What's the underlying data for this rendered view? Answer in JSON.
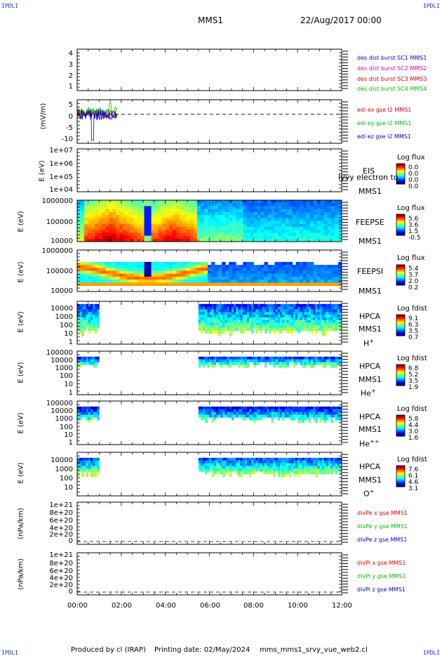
{
  "header": {
    "corner_tl": "IPDLI",
    "corner_tr": "IPDLI",
    "spacecraft": "MMS1",
    "date": "22/Aug/2017 00:00",
    "corner_bl": "IPDLI",
    "corner_br": "IPDLI"
  },
  "footer": {
    "produced_by": "Produced by cl (IRAP)",
    "printing_date": "Printing date: 02/May/2024",
    "filename": "mms_mms1_srvy_vue_web2.cl"
  },
  "x_axis": {
    "ticks": [
      "00:00",
      "02:00",
      "04:00",
      "06:00",
      "08:00",
      "10:00",
      "12:00"
    ],
    "range_hours": [
      0,
      12
    ]
  },
  "colors": {
    "mms1": "#0000cc",
    "mms2": "#cc00cc",
    "mms3": "#cc0000",
    "mms4": "#00bb00",
    "ex": "#dd0000",
    "ey": "#00bb00",
    "ez": "#0000cc"
  },
  "panels": {
    "p1": {
      "yticks": [
        "4",
        "3",
        "2",
        "1"
      ],
      "legend": [
        "des dist burst SC1 MMS1",
        "des dist burst SC2 MMS2",
        "des dist burst SC3 MMS3",
        "des dist burst SC4 MMS4"
      ]
    },
    "p2": {
      "ylabel": "(mV/m)",
      "yticks": [
        "5",
        "0",
        "-5",
        "-10"
      ],
      "legend": [
        "edi ex gse l2 MMS1",
        "edi ey gse l2 MMS1",
        "edi ez gse l2 MMS1"
      ]
    },
    "p3": {
      "ylabel": "E (eV)",
      "yticks": [
        "1e+07",
        "1e+06",
        "1e+05",
        "1e+04"
      ],
      "inst": "EIS",
      "inst_overlay": "lyvy electron to",
      "sc": "MMS1",
      "cb_title": "Log flux",
      "cb_values": [
        "0.0",
        "0.0",
        "0.0",
        "0.0"
      ]
    },
    "p4": {
      "ylabel": "E (eV)",
      "yticks": [
        "1000000",
        "100000",
        "10000"
      ],
      "inst": "FEEPSE",
      "sc": "MMS1",
      "cb_title": "Log flux",
      "cb_values": [
        "5.6",
        "3.6",
        "1.5",
        "-0.5"
      ]
    },
    "p5": {
      "ylabel": "E (eV)",
      "yticks": [
        "1000000",
        "100000",
        "10000"
      ],
      "inst": "FEEPSI",
      "sc": "MMS1",
      "cb_title": "Log flux",
      "cb_values": [
        "5.4",
        "3.7",
        "2.0",
        "0.2"
      ]
    },
    "p6": {
      "ylabel": "E (eV)",
      "yticks": [
        "10000",
        "1000",
        "100",
        "10",
        "1"
      ],
      "inst": "HPCA",
      "sc": "MMS1",
      "species": "H",
      "species_sup": "+",
      "cb_title": "Log fdist",
      "cb_values": [
        "9.1",
        "6.3",
        "3.5",
        "0.7"
      ]
    },
    "p7": {
      "ylabel": "E (eV)",
      "yticks": [
        "100000",
        "10000",
        "1000",
        "100",
        "10",
        "1"
      ],
      "inst": "HPCA",
      "sc": "MMS1",
      "species": "He",
      "species_sup": "+",
      "cb_title": "Log fdist",
      "cb_values": [
        "6.8",
        "5.2",
        "3.5",
        "1.9"
      ]
    },
    "p8": {
      "ylabel": "E (eV)",
      "yticks": [
        "100000",
        "10000",
        "1000",
        "100",
        "10",
        "1"
      ],
      "inst": "HPCA",
      "sc": "MMS1",
      "species": "He",
      "species_sup": "++",
      "cb_title": "Log fdist",
      "cb_values": [
        "5.8",
        "4.4",
        "3.0",
        "1.6"
      ]
    },
    "p9": {
      "ylabel": "E (eV)",
      "yticks": [
        "10000",
        "1000",
        "100",
        "10"
      ],
      "inst": "HPCA",
      "sc": "MMS1",
      "species": "O",
      "species_sup": "+",
      "cb_title": "Log fdist",
      "cb_values": [
        "7.6",
        "6.1",
        "4.6",
        "3.1"
      ]
    },
    "p10": {
      "ylabel": "(nPa/km)",
      "yticks": [
        "1e+21",
        "8e+20",
        "6e+20",
        "4e+20",
        "2e+20",
        "0"
      ],
      "legend": [
        "divPe x gse MMS1",
        "divPe y gse MMS1",
        "divPe z gse MMS1"
      ]
    },
    "p11": {
      "ylabel": "(nPa/km)",
      "yticks": [
        "1e+21",
        "8e+20",
        "6e+20",
        "4e+20",
        "2e+20",
        "0"
      ],
      "legend": [
        "divPi x gse MMS1",
        "divPi y gse MMS1",
        "divPi z gse MMS1"
      ]
    }
  },
  "chart_data": {
    "type": "heatmap",
    "x_range_hours": [
      0,
      12
    ],
    "e_field_y_range_mVm": [
      -10,
      5
    ],
    "feepse_coverage_hours": [
      [
        0.0,
        12.0
      ]
    ],
    "feepsi_coverage_hours": [
      [
        0.0,
        12.0
      ]
    ],
    "hpca_coverage_hours": [
      [
        0.0,
        1.0
      ],
      [
        5.5,
        12.0
      ]
    ],
    "edi_coverage_hours": [
      [
        0.0,
        1.8
      ]
    ]
  }
}
